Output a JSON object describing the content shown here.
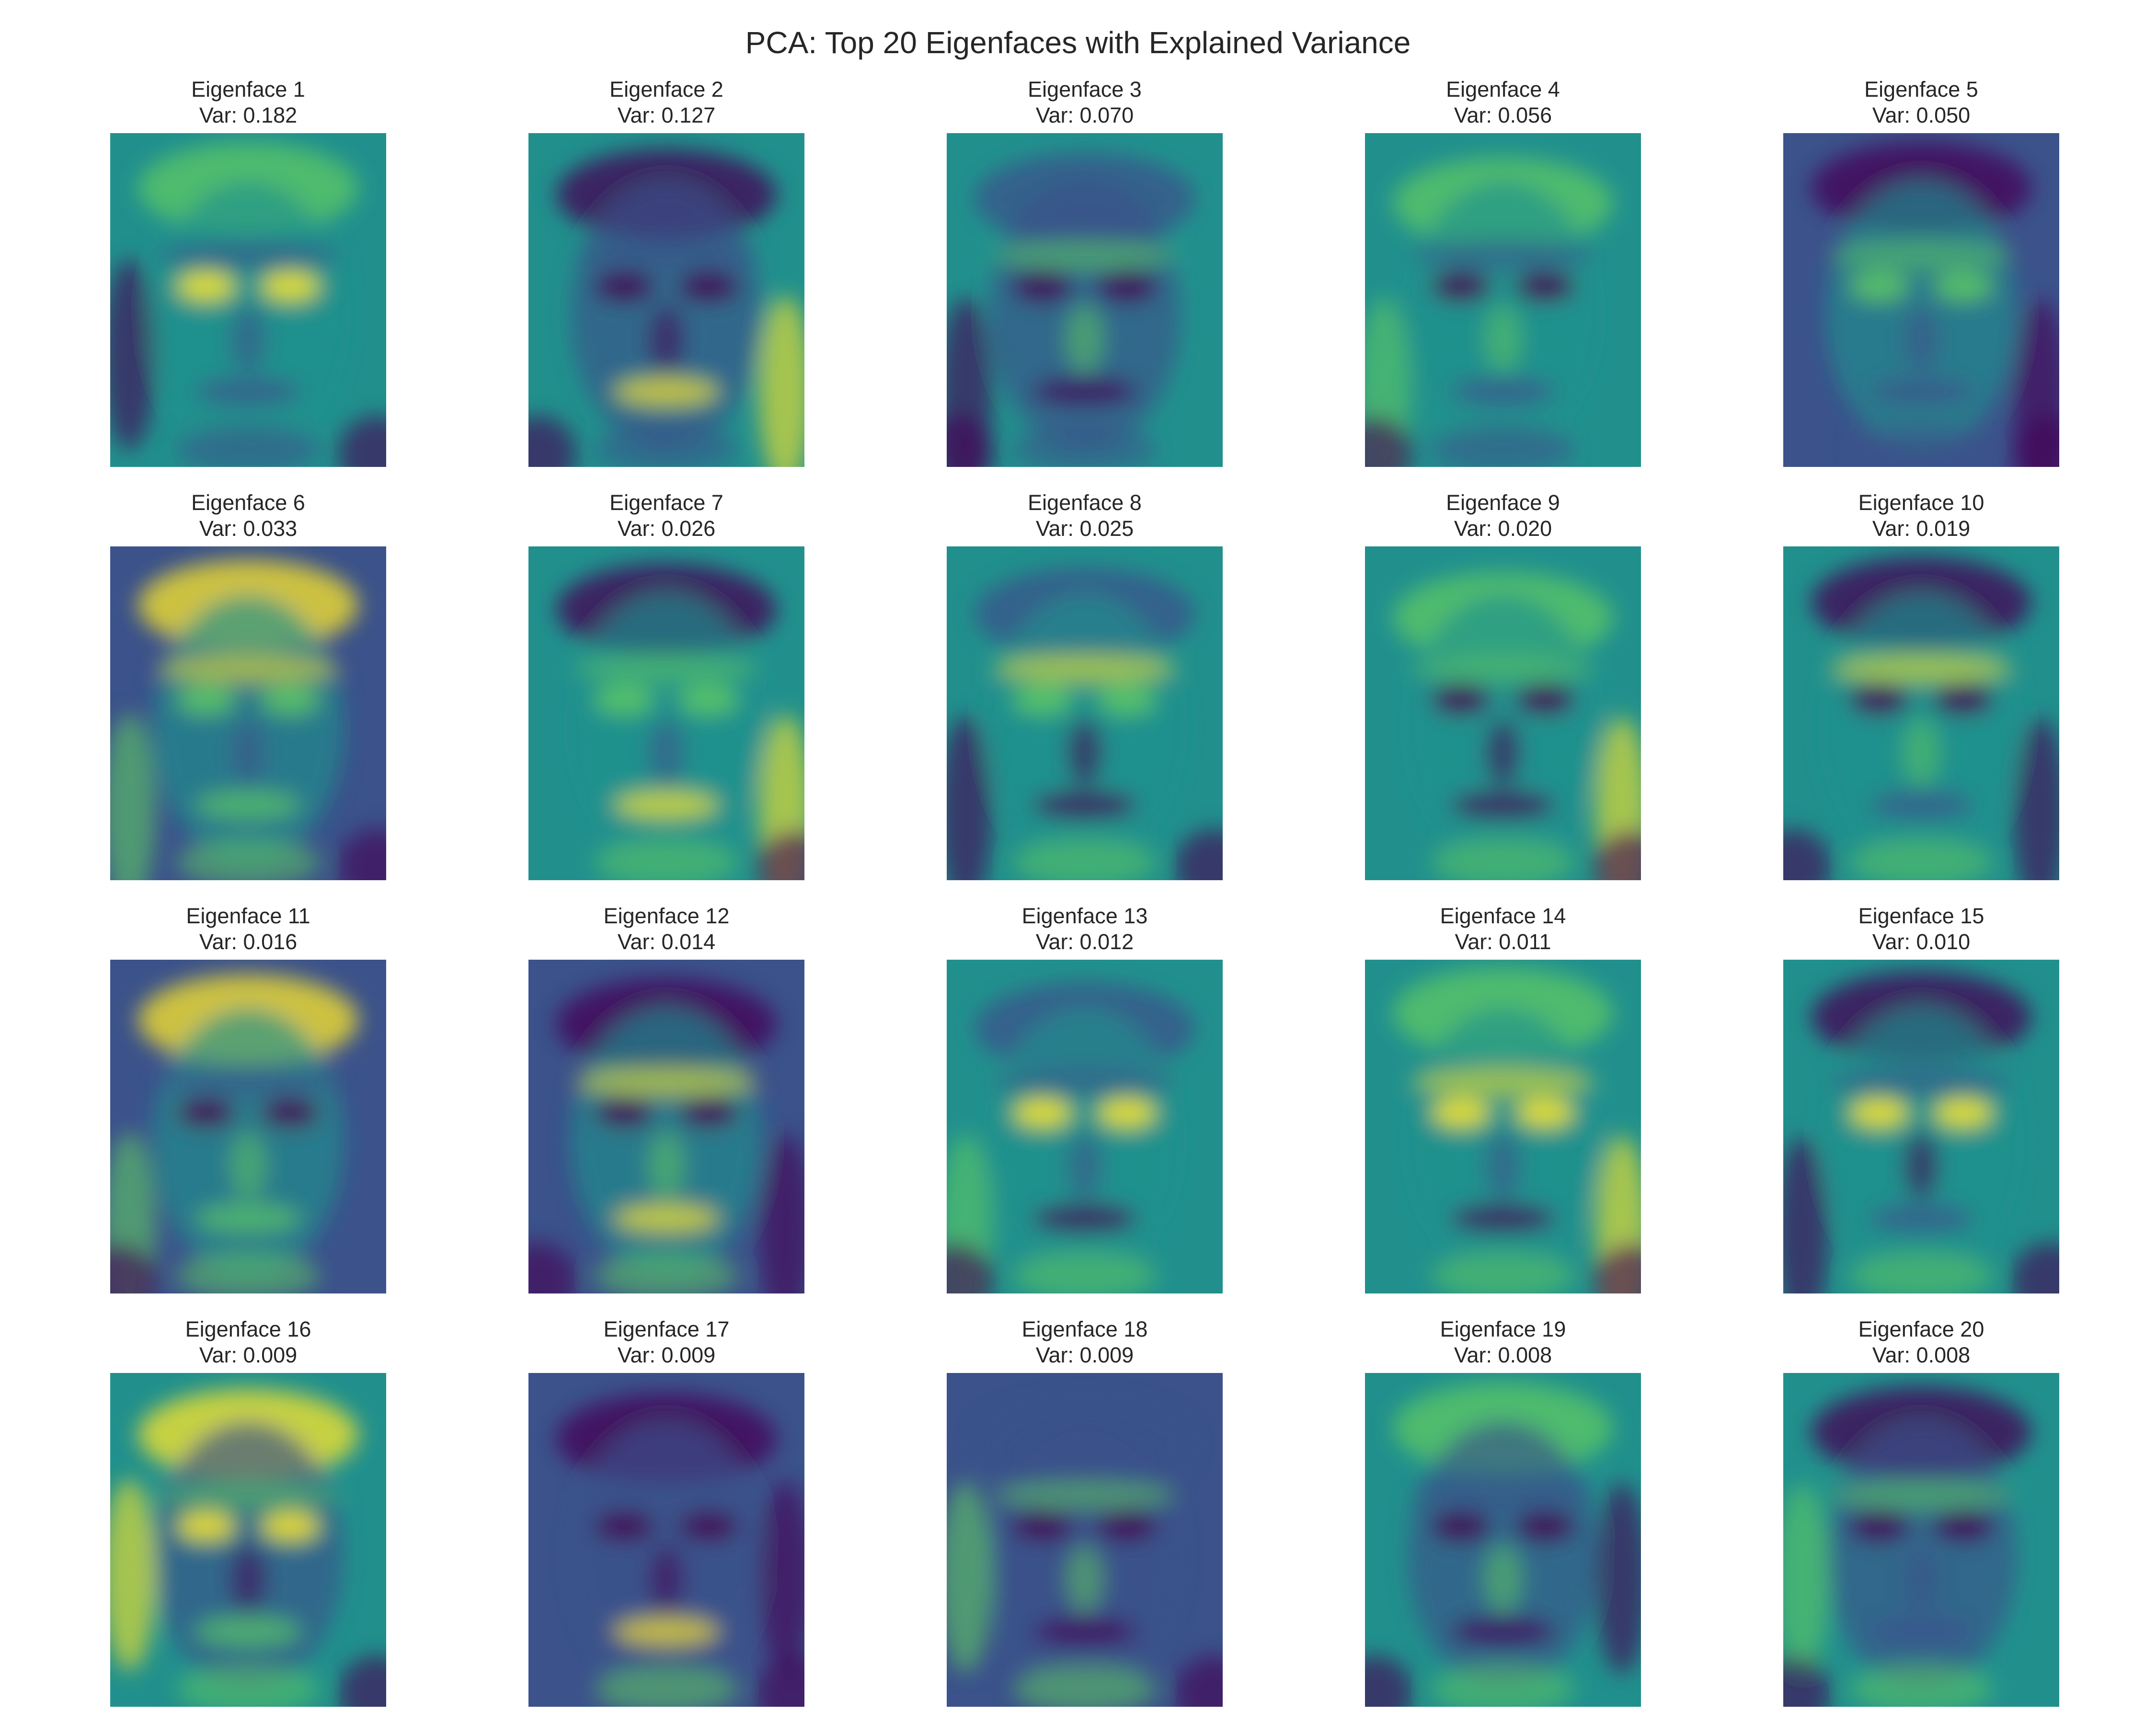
{
  "title": "PCA: Top 20 Eigenfaces with Explained Variance",
  "colormap": {
    "name": "viridis",
    "stops": [
      "#440154",
      "#3b528b",
      "#21908d",
      "#5dc963",
      "#fde725"
    ]
  },
  "chart_data": {
    "type": "heatmap",
    "title": "PCA: Top 20 Eigenfaces with Explained Variance",
    "grid": false,
    "axes_visible": false,
    "layout": "4 rows x 5 columns",
    "panels": [
      {
        "name": "Eigenface 1",
        "var_label": "Var: 0.182",
        "explained_variance": 0.182
      },
      {
        "name": "Eigenface 2",
        "var_label": "Var: 0.127",
        "explained_variance": 0.127
      },
      {
        "name": "Eigenface 3",
        "var_label": "Var: 0.070",
        "explained_variance": 0.07
      },
      {
        "name": "Eigenface 4",
        "var_label": "Var: 0.056",
        "explained_variance": 0.056
      },
      {
        "name": "Eigenface 5",
        "var_label": "Var: 0.050",
        "explained_variance": 0.05
      },
      {
        "name": "Eigenface 6",
        "var_label": "Var: 0.033",
        "explained_variance": 0.033
      },
      {
        "name": "Eigenface 7",
        "var_label": "Var: 0.026",
        "explained_variance": 0.026
      },
      {
        "name": "Eigenface 8",
        "var_label": "Var: 0.025",
        "explained_variance": 0.025
      },
      {
        "name": "Eigenface 9",
        "var_label": "Var: 0.020",
        "explained_variance": 0.02
      },
      {
        "name": "Eigenface 10",
        "var_label": "Var: 0.019",
        "explained_variance": 0.019
      },
      {
        "name": "Eigenface 11",
        "var_label": "Var: 0.016",
        "explained_variance": 0.016
      },
      {
        "name": "Eigenface 12",
        "var_label": "Var: 0.014",
        "explained_variance": 0.014
      },
      {
        "name": "Eigenface 13",
        "var_label": "Var: 0.012",
        "explained_variance": 0.012
      },
      {
        "name": "Eigenface 14",
        "var_label": "Var: 0.011",
        "explained_variance": 0.011
      },
      {
        "name": "Eigenface 15",
        "var_label": "Var: 0.010",
        "explained_variance": 0.01
      },
      {
        "name": "Eigenface 16",
        "var_label": "Var: 0.009",
        "explained_variance": 0.009
      },
      {
        "name": "Eigenface 17",
        "var_label": "Var: 0.009",
        "explained_variance": 0.009
      },
      {
        "name": "Eigenface 18",
        "var_label": "Var: 0.009",
        "explained_variance": 0.009
      },
      {
        "name": "Eigenface 19",
        "var_label": "Var: 0.008",
        "explained_variance": 0.008
      },
      {
        "name": "Eigenface 20",
        "var_label": "Var: 0.008",
        "explained_variance": 0.008
      }
    ]
  }
}
